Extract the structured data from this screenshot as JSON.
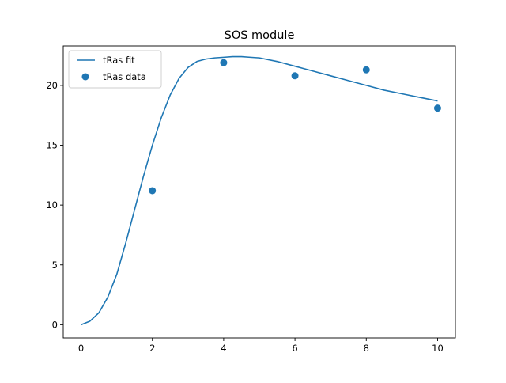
{
  "chart_data": {
    "type": "line",
    "title": "SOS module",
    "xlabel": "",
    "ylabel": "",
    "xlim": [
      -0.5,
      10.5
    ],
    "ylim": [
      -1.1,
      23.3
    ],
    "xticks": [
      0,
      2,
      4,
      6,
      8,
      10
    ],
    "yticks": [
      0,
      5,
      10,
      15,
      20
    ],
    "grid": false,
    "legend_position": "top-left",
    "series": [
      {
        "name": "tRas fit",
        "kind": "line",
        "color": "#1f77b4",
        "x": [
          0,
          0.25,
          0.5,
          0.75,
          1.0,
          1.25,
          1.5,
          1.75,
          2.0,
          2.25,
          2.5,
          2.75,
          3.0,
          3.25,
          3.5,
          3.75,
          4.0,
          4.25,
          4.5,
          4.75,
          5.0,
          5.5,
          6.0,
          6.5,
          7.0,
          7.5,
          8.0,
          8.5,
          9.0,
          9.5,
          10.0
        ],
        "y": [
          0,
          0.3,
          1.0,
          2.3,
          4.2,
          6.8,
          9.6,
          12.4,
          15.0,
          17.3,
          19.2,
          20.6,
          21.5,
          22.0,
          22.2,
          22.3,
          22.35,
          22.4,
          22.4,
          22.35,
          22.3,
          22.0,
          21.6,
          21.2,
          20.8,
          20.4,
          20.0,
          19.6,
          19.3,
          19.0,
          18.7
        ]
      },
      {
        "name": "tRas data",
        "kind": "scatter",
        "color": "#1f77b4",
        "x": [
          2,
          4,
          6,
          8,
          10
        ],
        "y": [
          11.2,
          21.9,
          20.8,
          21.3,
          18.1
        ]
      }
    ]
  }
}
